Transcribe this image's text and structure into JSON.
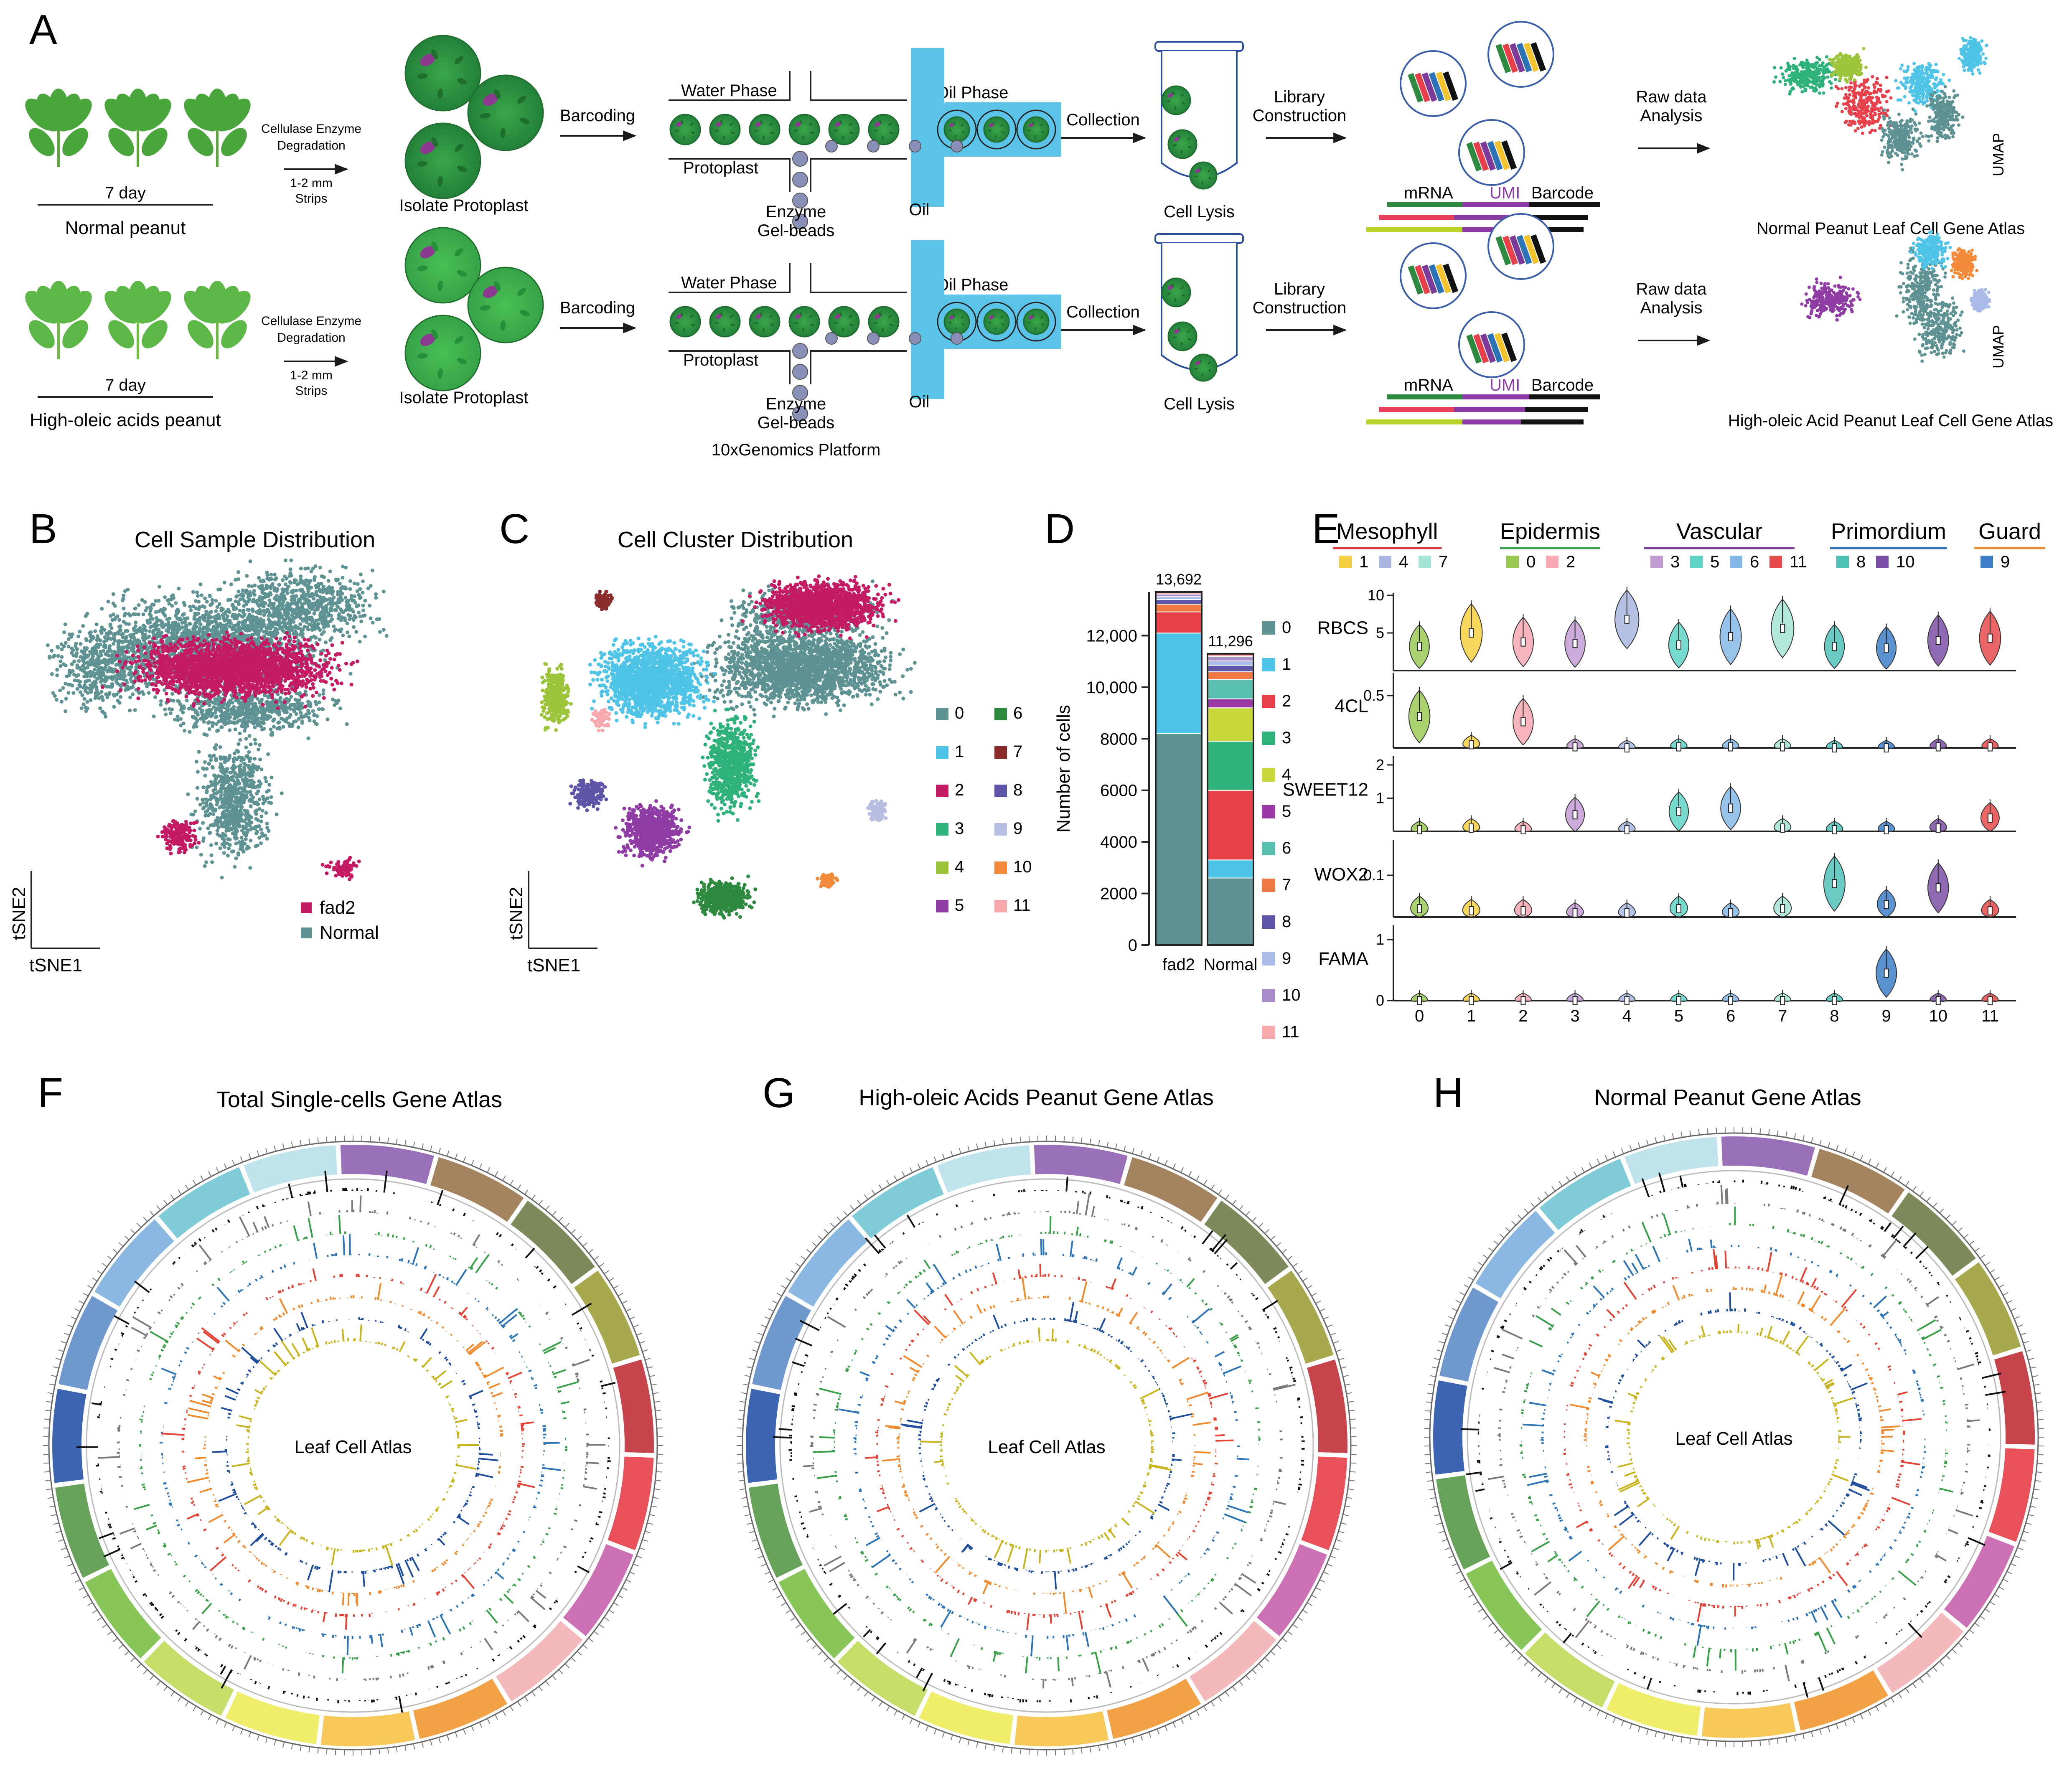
{
  "panels": {
    "A": "A",
    "B": "B",
    "C": "C",
    "D": "D",
    "E": "E",
    "F": "F",
    "G": "G",
    "H": "H"
  },
  "workflow": {
    "rows": [
      {
        "plant_days": "7 day",
        "plant_label": "Normal peanut",
        "enzyme": [
          "Cellulase Enzyme",
          "Degradation"
        ],
        "strips": [
          "1-2 mm",
          "Strips"
        ],
        "protoplast": "Isolate Protoplast",
        "barcoding": "Barcoding",
        "water_phase": "Water Phase",
        "oil_phase": "Oil Phase",
        "protoplast_in": "Protoplast",
        "enzyme_beads": [
          "Enzyme",
          "Gel-beads"
        ],
        "oil": "Oil",
        "collection": "Collection",
        "lysis": "Cell Lysis",
        "library": [
          "Library",
          "Construction"
        ],
        "mrna": "mRNA",
        "umi": "UMI",
        "barcode": "Barcode",
        "raw": [
          "Raw data",
          "Analysis"
        ],
        "umap": "UMAP",
        "atlas": "Normal Peanut Leaf Cell Gene Atlas"
      },
      {
        "plant_days": "7 day",
        "plant_label": "High-oleic acids peanut",
        "enzyme": [
          "Cellulase Enzyme",
          "Degradation"
        ],
        "strips": [
          "1-2 mm",
          "Strips"
        ],
        "protoplast": "Isolate Protoplast",
        "barcoding": "Barcoding",
        "water_phase": "Water Phase",
        "oil_phase": "Oil Phase",
        "protoplast_in": "Protoplast",
        "enzyme_beads": [
          "Enzyme",
          "Gel-beads"
        ],
        "oil": "Oil",
        "collection": "Collection",
        "lysis": "Cell Lysis",
        "library": [
          "Library",
          "Construction"
        ],
        "mrna": "mRNA",
        "umi": "UMI",
        "barcode": "Barcode",
        "raw": [
          "Raw data",
          "Analysis"
        ],
        "umap": "UMAP",
        "atlas": "High-oleic Acid Peanut Leaf Cell Gene Atlas"
      }
    ],
    "platform": "10xGenomics Platform"
  },
  "panel_b": {
    "title": "Cell Sample Distribution",
    "xlabel": "tSNE1",
    "ylabel": "tSNE2",
    "legend": [
      {
        "label": "fad2",
        "color": "#c51b65"
      },
      {
        "label": "Normal",
        "color": "#5f9293"
      }
    ]
  },
  "panel_c": {
    "title": "Cell Cluster Distribution",
    "xlabel": "tSNE1",
    "ylabel": "tSNE2",
    "legend": [
      "0",
      "1",
      "2",
      "3",
      "4",
      "5",
      "6",
      "7",
      "8",
      "9",
      "10",
      "11"
    ]
  },
  "colors": {
    "clusters": [
      "#5f9293",
      "#4fc4e6",
      "#c51b65",
      "#2eb17a",
      "#9bc43b",
      "#8f3ca5",
      "#2e8a3e",
      "#8b2c2c",
      "#5c55a8",
      "#b8bde2",
      "#f28a3a",
      "#f6a9ad"
    ],
    "bars": [
      "#5f9293",
      "#4fc4e6",
      "#e8404b",
      "#2eb17a",
      "#c8d83a",
      "#9b3aa5",
      "#5bbfb0",
      "#f07a44",
      "#5c55a8",
      "#a9b9e8",
      "#a78cc8",
      "#f6a9ad"
    ],
    "fig_black": "#111111"
  },
  "chart_data": [
    {
      "type": "bar",
      "stacked": true,
      "panel": "D",
      "categories": [
        "fad2",
        "Normal"
      ],
      "totals": [
        13692,
        11296
      ],
      "total_labels": [
        "13,692",
        "11,296"
      ],
      "ylabel": "Number of cells",
      "ylim": [
        0,
        13692
      ],
      "yticks": [
        0,
        2000,
        4000,
        6000,
        8000,
        10000,
        12000
      ],
      "ytick_labels": [
        "0",
        "2000",
        "4000",
        "6000",
        "8000",
        "10,000",
        "12,000"
      ],
      "series": [
        {
          "name": "0",
          "values": [
            8200,
            2600
          ]
        },
        {
          "name": "1",
          "values": [
            3900,
            700
          ]
        },
        {
          "name": "2",
          "values": [
            820,
            2700
          ]
        },
        {
          "name": "3",
          "values": [
            0,
            1900
          ]
        },
        {
          "name": "4",
          "values": [
            0,
            1300
          ]
        },
        {
          "name": "5",
          "values": [
            0,
            350
          ]
        },
        {
          "name": "6",
          "values": [
            0,
            750
          ]
        },
        {
          "name": "7",
          "values": [
            300,
            300
          ]
        },
        {
          "name": "8",
          "values": [
            180,
            250
          ]
        },
        {
          "name": "9",
          "values": [
            110,
            170
          ]
        },
        {
          "name": "10",
          "values": [
            100,
            160
          ]
        },
        {
          "name": "11",
          "values": [
            82,
            116
          ]
        }
      ]
    },
    {
      "type": "violin",
      "panel": "E",
      "groups": [
        {
          "name": "Mesophyll",
          "clusters": [
            "1",
            "4",
            "7"
          ],
          "color": "#d9383a"
        },
        {
          "name": "Epidermis",
          "clusters": [
            "0",
            "2"
          ],
          "color": "#3aa049"
        },
        {
          "name": "Vascular",
          "clusters": [
            "3",
            "5",
            "6",
            "11"
          ],
          "color": "#7e3a98"
        },
        {
          "name": "Primordium",
          "clusters": [
            "8",
            "10"
          ],
          "color": "#2c74b5"
        },
        {
          "name": "Guard",
          "clusters": [
            "9"
          ],
          "color": "#f08a2c"
        }
      ],
      "categories": [
        "0",
        "1",
        "2",
        "3",
        "4",
        "5",
        "6",
        "7",
        "8",
        "9",
        "10",
        "11"
      ],
      "violin_colors": [
        "#9ac954",
        "#f4d03f",
        "#f6a9b3",
        "#c39bd3",
        "#a9b7e0",
        "#5fd3c6",
        "#85b8e6",
        "#a5e3d6",
        "#4fc2b8",
        "#3d7fc7",
        "#7b4fa5",
        "#e64a4a"
      ],
      "genes": [
        {
          "name": "RBCS",
          "yticks": [
            "10",
            "5"
          ],
          "ymax": 10,
          "medians": [
            3.2,
            5.0,
            3.8,
            3.6,
            6.8,
            3.4,
            4.5,
            5.6,
            3.2,
            3.0,
            4.0,
            4.3
          ]
        },
        {
          "name": "4CL",
          "yticks": [
            "0.5"
          ],
          "ymax": 0.7,
          "medians": [
            0.3,
            0.03,
            0.25,
            0.01,
            0.0,
            0.01,
            0.01,
            0.01,
            0.0,
            0.0,
            0.01,
            0.01
          ]
        },
        {
          "name": "SWEET12",
          "yticks": [
            "2",
            "1"
          ],
          "ymax": 2.2,
          "medians": [
            0.05,
            0.1,
            0.05,
            0.5,
            0.05,
            0.6,
            0.7,
            0.1,
            0.05,
            0.05,
            0.1,
            0.4
          ]
        },
        {
          "name": "WOX2",
          "yticks": [
            "0.1"
          ],
          "ymax": 0.18,
          "medians": [
            0.02,
            0.015,
            0.015,
            0.01,
            0.01,
            0.02,
            0.01,
            0.02,
            0.08,
            0.03,
            0.07,
            0.015
          ]
        },
        {
          "name": "FAMA",
          "yticks": [
            "1",
            "0"
          ],
          "ymax": 1.2,
          "medians": [
            0.0,
            0.0,
            0.0,
            0.0,
            0.0,
            0.0,
            0.0,
            0.0,
            0.0,
            0.45,
            0.0,
            0.0
          ]
        }
      ]
    }
  ],
  "circos": {
    "titles": [
      "Total Single-cells Gene Atlas",
      "High-oleic Acids Peanut Gene Atlas",
      "Normal Peanut Gene Atlas"
    ],
    "center_label": "Leaf Cell Atlas",
    "ring_colors": [
      "#111111",
      "#7a7a7a",
      "#3aa049",
      "#2c74b5",
      "#e34234",
      "#f08a2c",
      "#1f4e9c",
      "#c8b41e"
    ],
    "chrom_colors": [
      "#9a70b8",
      "#a4845e",
      "#7d8a5a",
      "#a9a84f",
      "#c8444c",
      "#e8505a",
      "#cc72b4",
      "#f4b9bb",
      "#f2a144",
      "#f7c85a",
      "#eeee6a",
      "#c5de6a",
      "#88c65a",
      "#66a25a",
      "#3c64b0",
      "#6f98cf",
      "#8ab8e0",
      "#7fcbd8",
      "#bfe3ea"
    ]
  }
}
